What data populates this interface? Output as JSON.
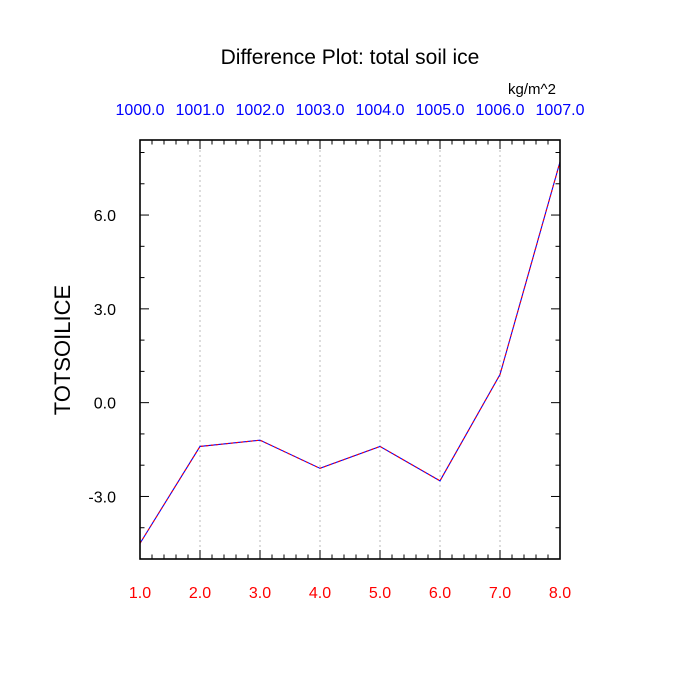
{
  "chart_data": {
    "type": "line",
    "title": "Difference Plot: total soil ice",
    "units": "kg/m^2",
    "ylabel": "TOTSOILICE",
    "x": [
      1.0,
      2.0,
      3.0,
      4.0,
      5.0,
      6.0,
      7.0,
      8.0
    ],
    "xlim": [
      1.0,
      8.0
    ],
    "ylim": [
      -5.0,
      8.4
    ],
    "bottom_tick_labels": [
      "1.0",
      "2.0",
      "3.0",
      "4.0",
      "5.0",
      "6.0",
      "7.0",
      "8.0"
    ],
    "top_tick_labels": [
      "1000.0",
      "1001.0",
      "1002.0",
      "1003.0",
      "1004.0",
      "1005.0",
      "1006.0",
      "1007.0"
    ],
    "y_tick_values": [
      6.0,
      3.0,
      0.0,
      -3.0
    ],
    "y_tick_labels": [
      "6.0",
      "3.0",
      "0.0",
      "-3.0"
    ],
    "series": [
      {
        "values": [
          -4.5,
          -1.4,
          -1.2,
          -2.1,
          -1.4,
          -2.5,
          0.9,
          7.7
        ]
      }
    ],
    "grid_x": true,
    "grid_y": false,
    "colors": {
      "line_a": "#0000ff",
      "line_b": "#ff0000",
      "bottom_ticks": "#ff0000",
      "top_ticks": "#0000ff",
      "grid": "#bbbbbb",
      "frame": "#000000"
    }
  }
}
